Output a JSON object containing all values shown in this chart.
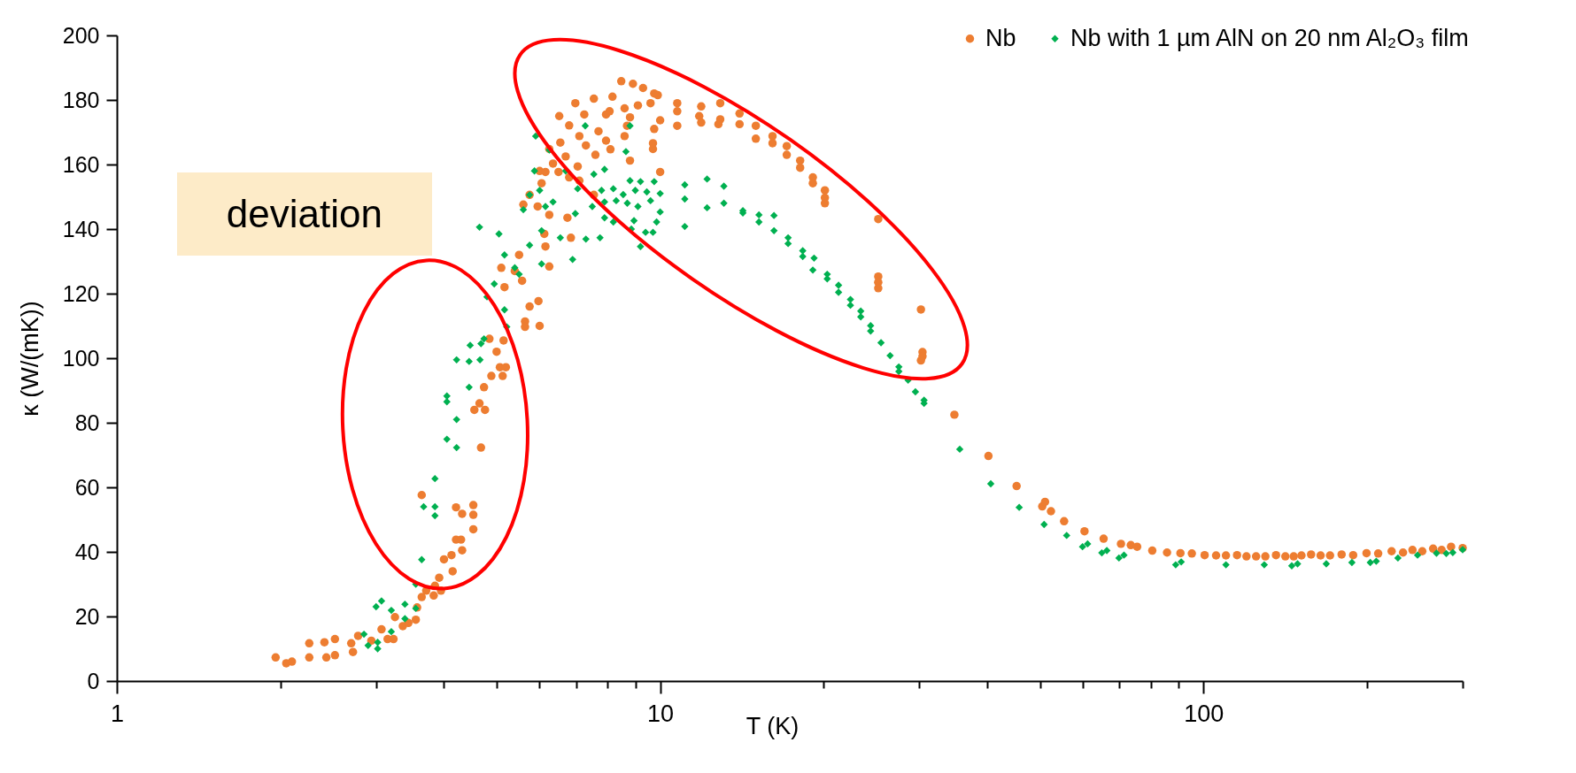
{
  "chart_data": {
    "type": "scatter",
    "xlabel": "T (K)",
    "ylabel": "κ (W/(mK))",
    "log": "x",
    "legend": "top right",
    "xlim": [
      1,
      300
    ],
    "ylim": [
      0,
      200
    ],
    "xticks": [
      1,
      {
        "value": 2,
        "label": null
      },
      {
        "value": 3,
        "label": null
      },
      {
        "value": 4,
        "label": null
      },
      {
        "value": 5,
        "label": null
      },
      {
        "value": 6,
        "label": null
      },
      {
        "value": 7,
        "label": null
      },
      {
        "value": 8,
        "label": null
      },
      {
        "value": 9,
        "label": null
      },
      10,
      {
        "value": 20,
        "label": null
      },
      {
        "value": 30,
        "label": null
      },
      {
        "value": 40,
        "label": null
      },
      {
        "value": 50,
        "label": null
      },
      {
        "value": 60,
        "label": null
      },
      {
        "value": 70,
        "label": null
      },
      {
        "value": 80,
        "label": null
      },
      {
        "value": 90,
        "label": null
      },
      100,
      {
        "value": 200,
        "label": null
      },
      {
        "value": 300,
        "label": null
      }
    ],
    "yticks": [
      0,
      20,
      40,
      60,
      80,
      100,
      120,
      140,
      160,
      180,
      200
    ],
    "annotations": [
      "deviation"
    ],
    "series": [
      {
        "name": "Nb",
        "color": "#ed7d31",
        "marker": "circle",
        "x": [
          1.96,
          2.05,
          2.1,
          2.26,
          2.26,
          2.41,
          2.52,
          2.43,
          2.52,
          2.7,
          2.72,
          2.78,
          2.94,
          3.07,
          3.15,
          3.23,
          3.25,
          3.36,
          3.44,
          3.55,
          3.57,
          3.64,
          3.64,
          3.71,
          3.83,
          3.85,
          3.95,
          3.92,
          4.0,
          4.15,
          4.13,
          4.21,
          4.3,
          4.32,
          4.21,
          4.32,
          4.53,
          4.53,
          4.53,
          4.68,
          4.65,
          4.55,
          4.76,
          4.74,
          4.89,
          5.07,
          5.13,
          5.2,
          5.0,
          5.15,
          4.85,
          5.64,
          5.64,
          5.1,
          5.17,
          5.4,
          5.5,
          5.57,
          5.75,
          6.0,
          6.12,
          5.75,
          6.0,
          5.6,
          5.97,
          6.25,
          6.15,
          6.85,
          6.75,
          6.25,
          5.95,
          7.55,
          7.1,
          6.8,
          6.05,
          6.15,
          6.5,
          10.0,
          7.05,
          6.35,
          8.8,
          7.6,
          6.7,
          6.25,
          9.7,
          8.1,
          7.3,
          6.55,
          9.7,
          8.6,
          7.95,
          7.1,
          9.75,
          8.69,
          7.7,
          6.8,
          10.0,
          8.8,
          7.95,
          7.25,
          6.52,
          9.6,
          9.1,
          8.6,
          8.07,
          6.98,
          7.55,
          8.17,
          9.9,
          9.75,
          9.3,
          8.91,
          8.48,
          10.75,
          10.75,
          10.75,
          11.9,
          11.8,
          11.9,
          12.9,
          12.9,
          12.8,
          14.0,
          14.0,
          15.0,
          15.0,
          16.1,
          16.1,
          17.1,
          17.1,
          18.1,
          18.1,
          19.1,
          19.1,
          20.1,
          20.1,
          20.1,
          25.2,
          25.2,
          25.2,
          25.2,
          30.2,
          30.4,
          30.4,
          30.2,
          34.8,
          40.2,
          45.3,
          50.5,
          51.1,
          52.4,
          55.4,
          60.4,
          65.5,
          70.5,
          73.5,
          75.5,
          80.5,
          85.7,
          90.7,
          95.2,
          100.5,
          105.5,
          110,
          115.3,
          120,
          125,
          130,
          136,
          141.5,
          146.6,
          151.5,
          157.8,
          164.3,
          171,
          179.6,
          188.6,
          199.6,
          209.7,
          222,
          233,
          242.5,
          252.8,
          264.7,
          274.4,
          285.6,
          300
        ],
        "values": [
          7.3,
          5.5,
          6,
          11.7,
          7.3,
          12,
          13,
          7.3,
          8,
          11.7,
          9,
          14,
          12.5,
          16,
          13,
          13,
          19.8,
          17,
          18,
          19,
          22.8,
          26,
          57.6,
          28,
          26.5,
          29.5,
          28,
          32,
          37.7,
          34,
          39,
          43.8,
          43.8,
          40.5,
          53.8,
          51.8,
          54.5,
          51.5,
          47,
          72.3,
          86,
          84,
          84,
          91,
          94.5,
          97.2,
          94.5,
          97.2,
          102,
          105.5,
          106,
          111.4,
          109.7,
          128,
          122,
          127,
          132,
          124,
          116,
          110,
          138.5,
          150.6,
          158,
          147.6,
          117.7,
          128.4,
          134.6,
          137.3,
          143.5,
          144.4,
          147,
          150.6,
          155,
          156,
          154.2,
          157.7,
          157.7,
          157.7,
          159.4,
          160.3,
          161.2,
          163,
          162.5,
          164.8,
          164.8,
          164.7,
          165.9,
          166.8,
          166.6,
          168.8,
          167.4,
          168.8,
          171,
          172,
          170.3,
          172.1,
          173.7,
          174.6,
          175.5,
          175.5,
          175,
          179,
          178.3,
          177.4,
          176.5,
          179,
          180.4,
          181,
          181.5,
          182,
          183.7,
          185,
          185.8,
          179,
          176.5,
          172,
          178,
          175,
          173,
          179,
          174,
          172.5,
          175.8,
          172.5,
          172,
          168,
          168.8,
          166.6,
          165.7,
          163,
          161.2,
          159,
          156,
          154.2,
          152,
          149.7,
          148,
          143.1,
          125.3,
          123.5,
          121.7,
          115.1,
          101.9,
          100.6,
          99.3,
          82.5,
          69.7,
          60.4,
          54.1,
          55.5,
          52.6,
          49.5,
          46.4,
          44.1,
          42.5,
          42.1,
          41.6,
          40.4,
          39.8,
          39.6,
          39.5,
          39,
          38.9,
          38.9,
          39,
          38.6,
          38.6,
          38.6,
          39,
          38.6,
          38.6,
          38.9,
          39.2,
          38.9,
          38.9,
          39.2,
          39,
          39.6,
          39.5,
          40.2,
          39.8,
          40.6,
          40.2,
          41,
          40.6,
          41.6,
          41.2
        ]
      },
      {
        "name": "Nb with 1 µm AlN on 20 nm Al₂O₃ film",
        "color": "#00b050",
        "marker": "diamond",
        "x": [
          2.85,
          2.9,
          3.02,
          3.02,
          3.2,
          3.0,
          3.07,
          3.2,
          3.39,
          3.39,
          3.55,
          3.55,
          3.64,
          3.67,
          3.85,
          3.85,
          3.85,
          4.05,
          4.22,
          4.22,
          4.05,
          4.05,
          4.45,
          4.22,
          4.45,
          4.66,
          4.47,
          4.68,
          4.74,
          5.22,
          4.8,
          4.95,
          5.17,
          4.65,
          5.05,
          5.17,
          5.4,
          5.5,
          5.75,
          5.6,
          5.75,
          5.87,
          6.0,
          5.9,
          7.28,
          8.8,
          8.65,
          6.25,
          6.7,
          7.55,
          7.9,
          8.8,
          9.2,
          9.75,
          7.8,
          8.2,
          8.55,
          9.0,
          9.45,
          10.0,
          7.05,
          6.35,
          7.9,
          8.3,
          8.7,
          9.1,
          9.6,
          10.0,
          7.5,
          6.15,
          6.98,
          7.9,
          8.2,
          8.95,
          9.85,
          6.05,
          6.55,
          7.3,
          7.75,
          8.85,
          9.4,
          9.7,
          9.2,
          6.9,
          6.05,
          11.1,
          11.1,
          11.1,
          12.2,
          12.2,
          13.1,
          13.1,
          14.2,
          14.2,
          15.2,
          15.2,
          16.2,
          16.2,
          17.2,
          17.2,
          18.3,
          18.3,
          19.2,
          19.1,
          20.3,
          20.3,
          21.3,
          21.3,
          22.4,
          22.4,
          23.4,
          23.4,
          24.4,
          24.4,
          25.5,
          26.5,
          27.5,
          27.5,
          28.6,
          29.5,
          30.6,
          30.6,
          35.6,
          40.6,
          45.8,
          50.9,
          56,
          59.9,
          61.2,
          65,
          66.4,
          69.9,
          71.4,
          88.9,
          91,
          110,
          129.4,
          145.4,
          149,
          168.3,
          187.6,
          202.8,
          208,
          228,
          247.8,
          268.5,
          279.9,
          287.7,
          300
        ],
        "values": [
          14.5,
          11,
          10,
          12,
          15.3,
          23,
          24.8,
          21.9,
          19.3,
          23.8,
          22.5,
          30,
          37.6,
          54,
          54,
          51.2,
          62.7,
          74.9,
          72.3,
          81,
          86.5,
          88.3,
          91,
          99.5,
          99,
          99.5,
          104,
          104.5,
          106,
          109.7,
          119,
          123,
          115,
          140.6,
          138.5,
          132,
          128,
          126,
          135,
          146,
          150.6,
          158,
          152,
          168.8,
          172,
          172,
          164,
          164.5,
          158,
          157,
          158.5,
          155,
          154.7,
          154.7,
          152,
          152.5,
          150.7,
          152,
          151.5,
          151,
          152.5,
          148.4,
          148.4,
          148.8,
          148,
          147,
          148.8,
          145.3,
          147,
          147,
          144.8,
          143.5,
          142.2,
          142.6,
          142.2,
          139.5,
          137.3,
          136.9,
          137.3,
          140,
          139,
          139,
          134.6,
          130.6,
          129.2,
          153.7,
          149.3,
          140.8,
          155.5,
          146.6,
          153.3,
          148,
          145.7,
          145,
          144.4,
          142.2,
          144.2,
          139.5,
          137.3,
          135.5,
          133.3,
          131.5,
          131,
          127.3,
          126,
          124.6,
          122.6,
          120.4,
          118.2,
          116.4,
          114.6,
          112.8,
          110.1,
          108.4,
          104.8,
          100.8,
          97.3,
          95.9,
          93.2,
          89.6,
          87,
          86,
          71.8,
          61.1,
          53.8,
          48.5,
          45.1,
          41.6,
          42.5,
          39.7,
          40.4,
          38.1,
          39,
          36,
          36.9,
          36,
          36,
          35.7,
          36.3,
          36.3,
          36.7,
          36.7,
          37.1,
          38.1,
          39,
          39.6,
          39.5,
          39.8,
          40.7
        ]
      }
    ]
  }
}
